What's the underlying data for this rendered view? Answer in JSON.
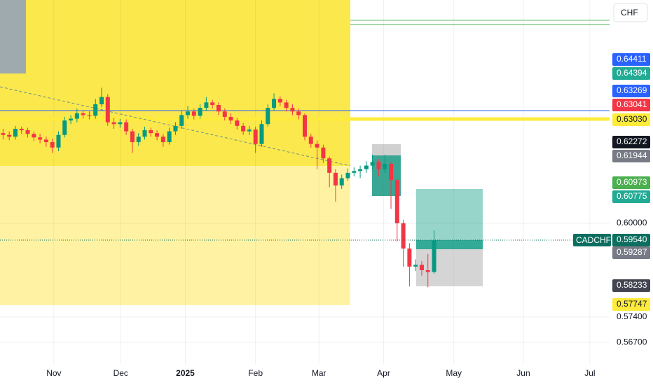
{
  "chart_data": {
    "type": "candlestick",
    "symbol": "CADCHF",
    "currency": "CHF",
    "open": [
      0.625,
      0.6245,
      0.624,
      0.6262,
      0.6258,
      0.6248,
      0.6238,
      0.6232,
      0.6225,
      0.621,
      0.6245,
      0.6285,
      0.629,
      0.6305,
      0.63,
      0.6298,
      0.633,
      0.635,
      0.628,
      0.6275,
      0.628,
      0.6255,
      0.6225,
      0.624,
      0.6258,
      0.625,
      0.624,
      0.6225,
      0.6255,
      0.627,
      0.63,
      0.631,
      0.6298,
      0.632,
      0.6335,
      0.6328,
      0.631,
      0.6295,
      0.6285,
      0.627,
      0.6255,
      0.626,
      0.622,
      0.6275,
      0.632,
      0.6345,
      0.6335,
      0.632,
      0.631,
      0.63,
      0.624,
      0.622,
      0.621,
      0.618,
      0.614,
      0.6105,
      0.6125,
      0.614,
      0.6145,
      0.615,
      0.616,
      0.617,
      0.615,
      0.6165,
      0.612,
      0.6,
      0.593,
      0.588,
      0.5885,
      0.587,
      0.5865
    ],
    "high": [
      0.6262,
      0.6255,
      0.627,
      0.6268,
      0.6265,
      0.6255,
      0.6248,
      0.624,
      0.6235,
      0.6255,
      0.6295,
      0.63,
      0.6318,
      0.6312,
      0.631,
      0.6345,
      0.6376,
      0.6358,
      0.6292,
      0.629,
      0.6288,
      0.6262,
      0.625,
      0.6268,
      0.6265,
      0.6258,
      0.6248,
      0.6265,
      0.628,
      0.6312,
      0.6325,
      0.6318,
      0.633,
      0.635,
      0.6342,
      0.6335,
      0.6318,
      0.6305,
      0.6292,
      0.6278,
      0.627,
      0.6268,
      0.6285,
      0.633,
      0.636,
      0.6352,
      0.6342,
      0.633,
      0.6318,
      0.6305,
      0.6248,
      0.623,
      0.6218,
      0.6185,
      0.615,
      0.6135,
      0.6152,
      0.6155,
      0.616,
      0.6172,
      0.619,
      0.6178,
      0.619,
      0.617,
      0.6125,
      0.601,
      0.5945,
      0.59,
      0.5895,
      0.5915,
      0.598
    ],
    "low": [
      0.6232,
      0.623,
      0.6232,
      0.6248,
      0.6238,
      0.6228,
      0.6222,
      0.6212,
      0.6195,
      0.62,
      0.6238,
      0.6275,
      0.628,
      0.629,
      0.6288,
      0.629,
      0.6322,
      0.627,
      0.6262,
      0.6265,
      0.6245,
      0.6195,
      0.6215,
      0.6232,
      0.624,
      0.623,
      0.6212,
      0.6218,
      0.6245,
      0.6262,
      0.629,
      0.6288,
      0.629,
      0.6312,
      0.6318,
      0.63,
      0.6285,
      0.6275,
      0.626,
      0.6245,
      0.6245,
      0.6195,
      0.6212,
      0.6268,
      0.6312,
      0.6325,
      0.631,
      0.63,
      0.6288,
      0.623,
      0.621,
      0.615,
      0.6168,
      0.61,
      0.606,
      0.6095,
      0.6118,
      0.613,
      0.6125,
      0.614,
      0.615,
      0.613,
      0.614,
      0.604,
      0.595,
      0.588,
      0.5825,
      0.5868,
      0.5855,
      0.5823,
      0.586
    ],
    "close": [
      0.6245,
      0.624,
      0.6262,
      0.6258,
      0.6248,
      0.6238,
      0.6232,
      0.6225,
      0.621,
      0.6245,
      0.6285,
      0.629,
      0.6305,
      0.63,
      0.6298,
      0.633,
      0.635,
      0.628,
      0.6275,
      0.628,
      0.6255,
      0.6225,
      0.624,
      0.6258,
      0.625,
      0.624,
      0.6225,
      0.6255,
      0.627,
      0.63,
      0.631,
      0.6298,
      0.632,
      0.6335,
      0.6328,
      0.631,
      0.6295,
      0.6285,
      0.627,
      0.6255,
      0.626,
      0.622,
      0.6275,
      0.632,
      0.6345,
      0.6335,
      0.632,
      0.631,
      0.63,
      0.624,
      0.622,
      0.621,
      0.618,
      0.614,
      0.6105,
      0.6125,
      0.614,
      0.6145,
      0.615,
      0.616,
      0.617,
      0.615,
      0.6165,
      0.612,
      0.6,
      0.593,
      0.588,
      0.5885,
      0.587,
      0.5865,
      0.5952
    ],
    "up_color": "#089981",
    "down_color": "#f23645",
    "xlim": [
      0,
      99
    ],
    "xticks": [
      {
        "value": 8.75,
        "label": "Nov"
      },
      {
        "value": 19.6,
        "label": "Dec"
      },
      {
        "value": 30.1,
        "label": "2025"
      },
      {
        "value": 41.5,
        "label": "Feb"
      },
      {
        "value": 51.8,
        "label": "Mar"
      },
      {
        "value": 62.3,
        "label": "Apr"
      },
      {
        "value": 73.7,
        "label": "May"
      },
      {
        "value": 85,
        "label": "Jun"
      },
      {
        "value": 95.8,
        "label": "Jul"
      }
    ],
    "ylim": [
      0.561,
      0.6619
    ],
    "yticks": [
      {
        "value": 0.6,
        "label": "0.60000"
      },
      {
        "value": 0.574,
        "label": "0.57400"
      },
      {
        "value": 0.567,
        "label": "0.56700"
      }
    ],
    "grid": true,
    "price_badges": [
      {
        "value": 0.64411,
        "label": "0.64411",
        "color": "#2962ff"
      },
      {
        "value": 0.64394,
        "label": "0.64394",
        "color": "#22ab94"
      },
      {
        "value": 0.63269,
        "label": "0.63269",
        "color": "#2962ff"
      },
      {
        "value": 0.63041,
        "label": "0.63041",
        "color": "#f23645"
      },
      {
        "value": 0.6303,
        "label": "0.63030",
        "color": "#ffeb3b"
      },
      {
        "value": 0.62272,
        "label": "0.62272",
        "color": "#131722"
      },
      {
        "value": 0.61944,
        "label": "0.61944",
        "color": "#787b86"
      },
      {
        "value": 0.60973,
        "label": "0.60973",
        "color": "#4caf50"
      },
      {
        "value": 0.60775,
        "label": "0.60775",
        "color": "#22ab94"
      },
      {
        "value": 0.5954,
        "label": "0.59540",
        "color": "#0b6e5f"
      },
      {
        "value": 0.59287,
        "label": "0.59287",
        "color": "#787b86"
      },
      {
        "value": 0.58233,
        "label": "0.58233",
        "color": "#434651"
      },
      {
        "value": 0.57747,
        "label": "0.57747",
        "color": "#ffeb3b"
      }
    ]
  }
}
